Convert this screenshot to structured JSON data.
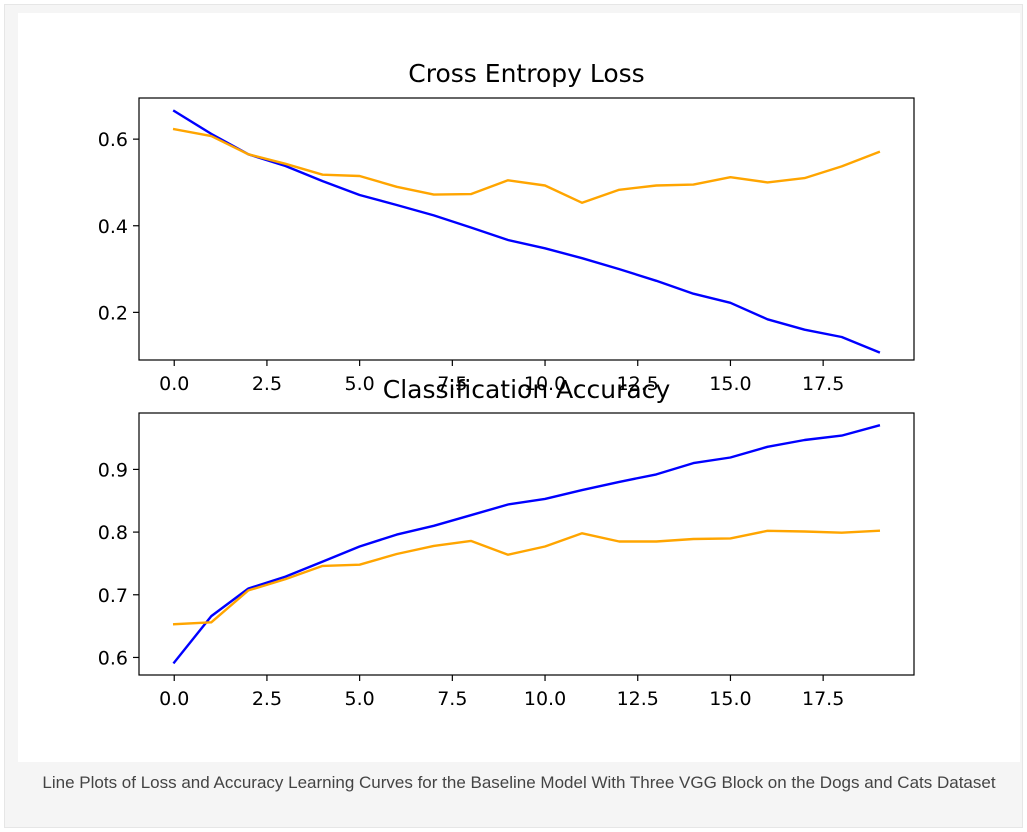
{
  "figure": {
    "caption": "Line Plots of Loss and Accuracy Learning Curves for the Baseline Model With Three VGG Block on the Dogs and Cats Dataset"
  },
  "chart_data": [
    {
      "type": "line",
      "title": "Cross Entropy Loss",
      "xlabel": "",
      "ylabel": "",
      "xlim": [
        -0.95,
        19.95
      ],
      "ylim": [
        0.09,
        0.695
      ],
      "xticks": [
        0.0,
        2.5,
        5.0,
        7.5,
        10.0,
        12.5,
        15.0,
        17.5
      ],
      "xtick_labels": [
        "0.0",
        "2.5",
        "5.0",
        "7.5",
        "10.0",
        "12.5",
        "15.0",
        "17.5"
      ],
      "yticks": [
        0.2,
        0.4,
        0.6
      ],
      "ytick_labels": [
        "0.2",
        "0.4",
        "0.6"
      ],
      "x": [
        0,
        1,
        2,
        3,
        4,
        5,
        6,
        7,
        8,
        9,
        10,
        11,
        12,
        13,
        14,
        15,
        16,
        17,
        18,
        19
      ],
      "series": [
        {
          "color": "#0000ff",
          "values": [
            0.665,
            0.612,
            0.565,
            0.538,
            0.503,
            0.471,
            0.448,
            0.424,
            0.396,
            0.367,
            0.348,
            0.325,
            0.3,
            0.273,
            0.243,
            0.222,
            0.184,
            0.16,
            0.143,
            0.108
          ]
        },
        {
          "color": "#ffa500",
          "values": [
            0.623,
            0.607,
            0.565,
            0.543,
            0.518,
            0.515,
            0.49,
            0.472,
            0.473,
            0.505,
            0.493,
            0.453,
            0.483,
            0.493,
            0.495,
            0.512,
            0.5,
            0.51,
            0.537,
            0.57
          ]
        }
      ]
    },
    {
      "type": "line",
      "title": "Classification Accuracy",
      "xlabel": "",
      "ylabel": "",
      "xlim": [
        -0.95,
        19.95
      ],
      "ylim": [
        0.572,
        0.99
      ],
      "xticks": [
        0.0,
        2.5,
        5.0,
        7.5,
        10.0,
        12.5,
        15.0,
        17.5
      ],
      "xtick_labels": [
        "0.0",
        "2.5",
        "5.0",
        "7.5",
        "10.0",
        "12.5",
        "15.0",
        "17.5"
      ],
      "yticks": [
        0.6,
        0.7,
        0.8,
        0.9
      ],
      "ytick_labels": [
        "0.6",
        "0.7",
        "0.8",
        "0.9"
      ],
      "x": [
        0,
        1,
        2,
        3,
        4,
        5,
        6,
        7,
        8,
        9,
        10,
        11,
        12,
        13,
        14,
        15,
        16,
        17,
        18,
        19
      ],
      "series": [
        {
          "color": "#0000ff",
          "values": [
            0.592,
            0.666,
            0.71,
            0.729,
            0.753,
            0.777,
            0.796,
            0.81,
            0.827,
            0.844,
            0.853,
            0.867,
            0.88,
            0.892,
            0.91,
            0.919,
            0.936,
            0.947,
            0.954,
            0.97
          ]
        },
        {
          "color": "#ffa500",
          "values": [
            0.653,
            0.656,
            0.707,
            0.725,
            0.746,
            0.748,
            0.765,
            0.778,
            0.786,
            0.764,
            0.777,
            0.798,
            0.785,
            0.785,
            0.789,
            0.79,
            0.802,
            0.801,
            0.799,
            0.802
          ]
        }
      ]
    }
  ]
}
